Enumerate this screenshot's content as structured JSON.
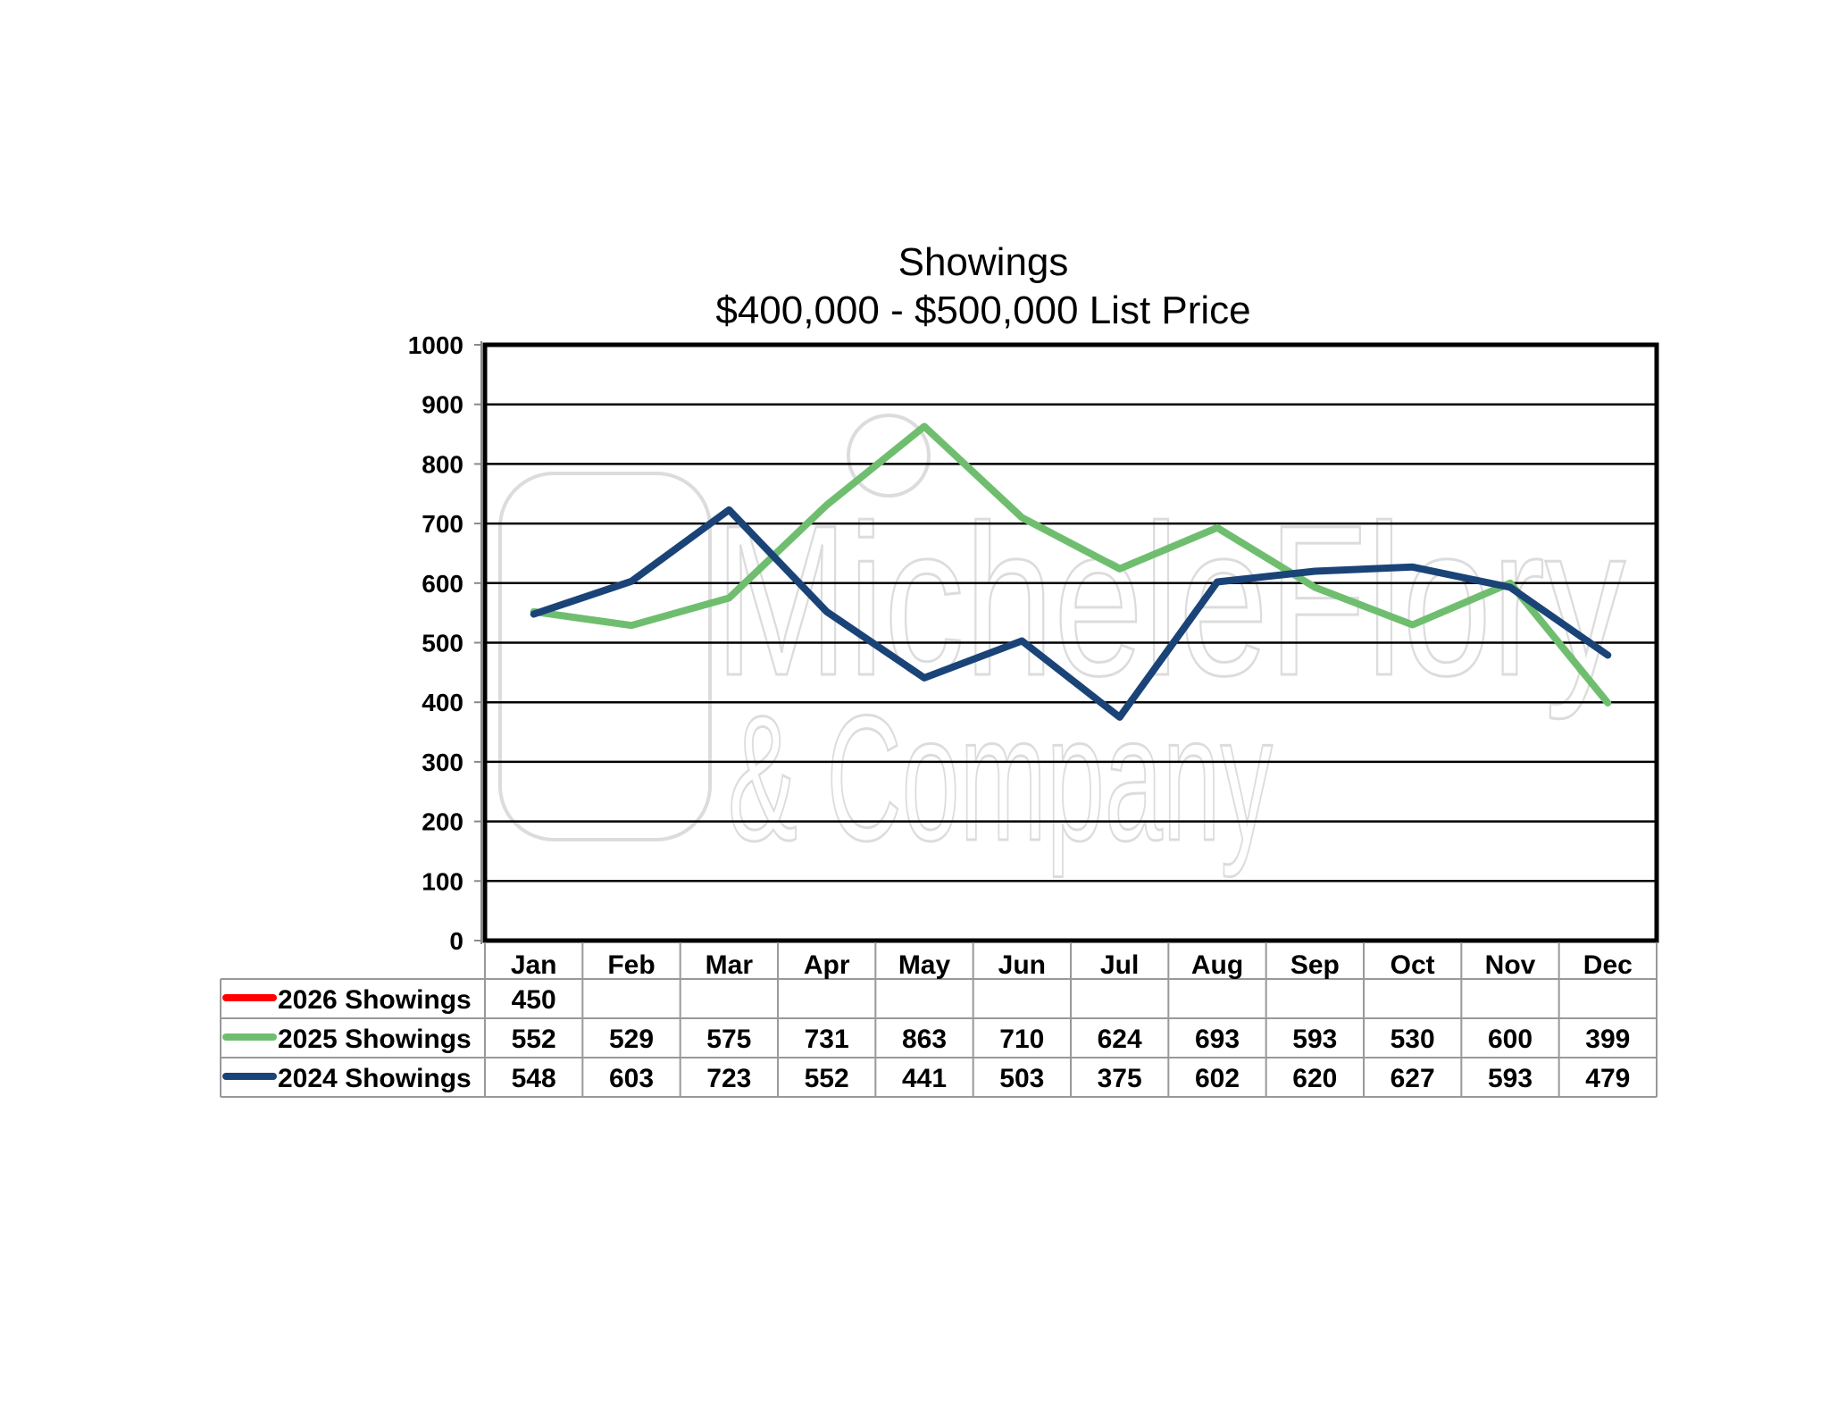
{
  "chart_data": {
    "type": "line",
    "title": "Showings",
    "subtitle": "$400,000 - $500,000 List Price",
    "xlabel": "",
    "ylabel": "",
    "ylim": [
      0,
      1000
    ],
    "yticks": [
      0,
      100,
      200,
      300,
      400,
      500,
      600,
      700,
      800,
      900,
      1000
    ],
    "grid": true,
    "legend": "data-table-left",
    "categories": [
      "Jan",
      "Feb",
      "Mar",
      "Apr",
      "May",
      "Jun",
      "Jul",
      "Aug",
      "Sep",
      "Oct",
      "Nov",
      "Dec"
    ],
    "series": [
      {
        "name": "2026 Showings",
        "color": "#ff0000",
        "values": [
          450,
          null,
          null,
          null,
          null,
          null,
          null,
          null,
          null,
          null,
          null,
          null
        ]
      },
      {
        "name": "2025 Showings",
        "color": "#6fbe6f",
        "values": [
          552,
          529,
          575,
          731,
          863,
          710,
          624,
          693,
          593,
          530,
          600,
          399
        ]
      },
      {
        "name": "2024 Showings",
        "color": "#1a4478",
        "values": [
          548,
          603,
          723,
          552,
          441,
          503,
          375,
          602,
          620,
          627,
          593,
          479
        ]
      }
    ],
    "watermark": [
      "MicheleFlory",
      "& Company"
    ]
  }
}
